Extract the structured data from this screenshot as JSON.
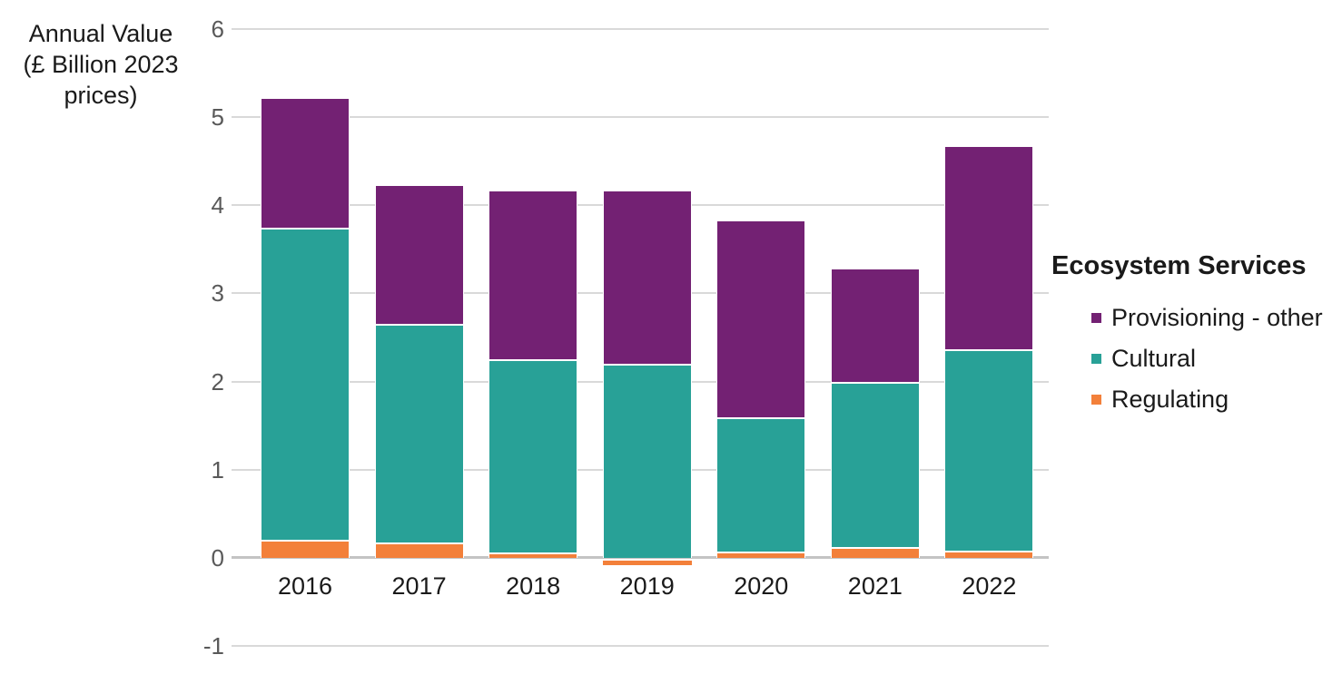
{
  "y_axis": {
    "title_lines": [
      "Annual Value",
      "(£ Billion 2023",
      "prices)"
    ]
  },
  "legend": {
    "title": "Ecosystem Services",
    "items": [
      {
        "label": "Provisioning - other",
        "color": "#732173"
      },
      {
        "label": "Cultural",
        "color": "#28A197"
      },
      {
        "label": "Regulating",
        "color": "#F3803A"
      }
    ]
  },
  "chart_data": {
    "type": "bar",
    "stacked": true,
    "title": "",
    "ylabel": "Annual Value (£ Billion 2023 prices)",
    "categories": [
      "2016",
      "2017",
      "2018",
      "2019",
      "2020",
      "2021",
      "2022"
    ],
    "series": [
      {
        "name": "Regulating",
        "color": "#F3803A",
        "values": [
          0.2,
          0.17,
          0.06,
          -0.05,
          0.07,
          0.12,
          0.08
        ]
      },
      {
        "name": "Cultural",
        "color": "#28A197",
        "values": [
          3.55,
          2.48,
          2.19,
          2.2,
          1.52,
          1.88,
          2.29
        ]
      },
      {
        "name": "Provisioning - other",
        "color": "#732173",
        "values": [
          1.48,
          1.59,
          1.93,
          1.98,
          2.25,
          1.29,
          2.31
        ]
      }
    ],
    "stack_totals": [
      5.23,
      4.24,
      4.18,
      4.18,
      3.84,
      3.29,
      4.68
    ],
    "ylim": [
      -1,
      6
    ],
    "yticks": [
      6,
      5,
      4,
      3,
      2,
      1,
      0,
      -1
    ],
    "grid": true,
    "legend_title": "Ecosystem Services",
    "legend_position": "right",
    "colors": {
      "gridline": "#d9d9d9",
      "zero_line": "#c4c4c4",
      "tick_text": "#595959",
      "label_text": "#1a1a1a"
    }
  }
}
